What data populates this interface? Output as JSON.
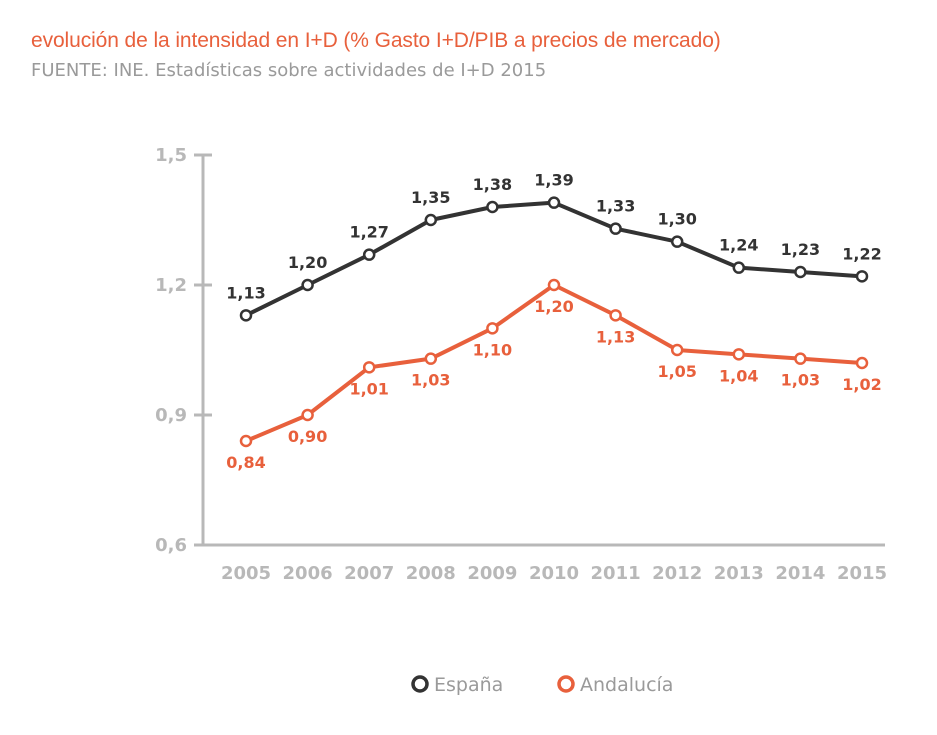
{
  "chart_data": {
    "type": "line",
    "title": "evolución de la intensidad en I+D (% Gasto I+D/PIB a precios de mercado)",
    "subtitle": "FUENTE: INE. Estadísticas sobre actividades de I+D 2015",
    "categories": [
      "2005",
      "2006",
      "2007",
      "2008",
      "2009",
      "2010",
      "2011",
      "2012",
      "2013",
      "2014",
      "2015"
    ],
    "series": [
      {
        "name": "España",
        "color": "#333333",
        "values": [
          1.13,
          1.2,
          1.27,
          1.35,
          1.38,
          1.39,
          1.33,
          1.3,
          1.24,
          1.23,
          1.22
        ],
        "labels": [
          "1,13",
          "1,20",
          "1,27",
          "1,35",
          "1,38",
          "1,39",
          "1,33",
          "1,30",
          "1,24",
          "1,23",
          "1,22"
        ],
        "label_position": "above"
      },
      {
        "name": "Andalucía",
        "color": "#e8603c",
        "values": [
          0.84,
          0.9,
          1.01,
          1.03,
          1.1,
          1.2,
          1.13,
          1.05,
          1.04,
          1.03,
          1.02
        ],
        "labels": [
          "0,84",
          "0,90",
          "1,01",
          "1,03",
          "1,10",
          "1,20",
          "1,13",
          "1,05",
          "1,04",
          "1,03",
          "1,02"
        ],
        "label_position": "below"
      }
    ],
    "y_ticks": [
      0.6,
      0.9,
      1.2,
      1.5
    ],
    "y_tick_labels": [
      "0,6",
      "0,9",
      "1,2",
      "1,5"
    ],
    "ylim": [
      0.6,
      1.5
    ],
    "xlabel": "",
    "ylabel": "",
    "grid": false,
    "legend_position": "bottom-center",
    "axis_color": "#b8b8b8"
  }
}
